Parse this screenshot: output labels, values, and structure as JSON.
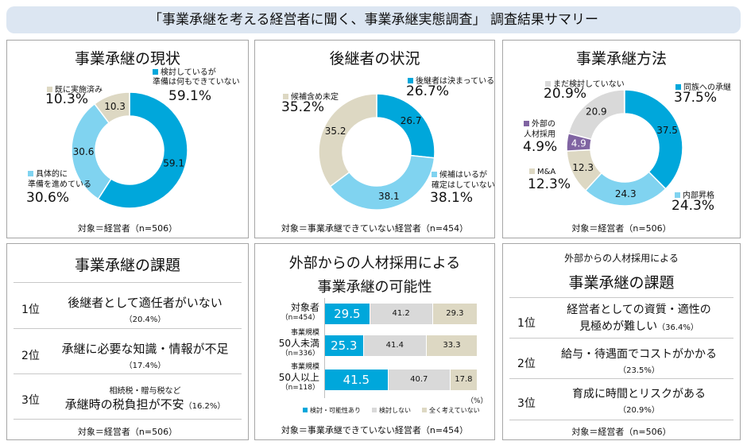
{
  "header": {
    "title": "「事業承継を考える経営者に聞く、事業承継実態調査」 調査結果サマリー"
  },
  "colors": {
    "dark_blue": "#00a7db",
    "light_blue": "#80d3f0",
    "beige": "#ddd8c3",
    "gray": "#d9d9d9",
    "purple": "#8064a2"
  },
  "chart_data": [
    {
      "type": "pie",
      "title": "事業承継の現状",
      "footer": "対象＝経営者（n=506）",
      "slices": [
        {
          "name_lines": [
            "検討しているが",
            "準備は何もできていない"
          ],
          "value": 59.1,
          "pct": "59.1%",
          "color": "#00a7db"
        },
        {
          "name_lines": [
            "具体的に",
            "準備を進めている"
          ],
          "value": 30.6,
          "pct": "30.6%",
          "color": "#80d3f0"
        },
        {
          "name_lines": [
            "既に実施済み"
          ],
          "value": 10.3,
          "pct": "10.3%",
          "color": "#ddd8c3"
        }
      ]
    },
    {
      "type": "pie",
      "title": "後継者の状況",
      "footer": "対象＝事業承継できていない経営者（n=454）",
      "slices": [
        {
          "name_lines": [
            "後継者は決まっている"
          ],
          "value": 26.7,
          "pct": "26.7%",
          "color": "#00a7db"
        },
        {
          "name_lines": [
            "候補はいるが",
            "確定はしていない"
          ],
          "value": 38.1,
          "pct": "38.1%",
          "color": "#80d3f0"
        },
        {
          "name_lines": [
            "候補含め未定"
          ],
          "value": 35.2,
          "pct": "35.2%",
          "color": "#ddd8c3"
        }
      ]
    },
    {
      "type": "pie",
      "title": "事業承継方法",
      "footer": "対象＝経営者（n=506）",
      "slices": [
        {
          "name_lines": [
            "同族への承継"
          ],
          "value": 37.5,
          "pct": "37.5%",
          "color": "#00a7db"
        },
        {
          "name_lines": [
            "内部昇格"
          ],
          "value": 24.3,
          "pct": "24.3%",
          "color": "#80d3f0"
        },
        {
          "name_lines": [
            "M&A"
          ],
          "value": 12.3,
          "pct": "12.3%",
          "color": "#ddd8c3"
        },
        {
          "name_lines": [
            "外部の",
            "人材採用"
          ],
          "value": 4.9,
          "pct": "4.9%",
          "color": "#8064a2"
        },
        {
          "name_lines": [
            "まだ検討していない"
          ],
          "value": 20.9,
          "pct": "20.9%",
          "color": "#d9d9d9"
        }
      ]
    },
    {
      "type": "bar",
      "orientation": "horizontal",
      "stacked": true,
      "title_lines": [
        "外部からの人材採用による",
        "事業承継の可能性"
      ],
      "unit": "（%）",
      "xlim": [
        0,
        100
      ],
      "footer": "対象＝事業承継できていない経営者（n=454）",
      "categories": [
        {
          "pre": "",
          "main": "対象者",
          "n": "（n=454）"
        },
        {
          "pre": "事業規模",
          "main": "50人未満",
          "n": "（n=336）"
        },
        {
          "pre": "事業規模",
          "main": "50人以上",
          "n": "（n=118）"
        }
      ],
      "series": [
        {
          "name": "検討・可能性あり",
          "values": [
            29.5,
            25.3,
            41.5
          ],
          "color": "#00a7db"
        },
        {
          "name": "検討しない",
          "values": [
            41.2,
            41.4,
            40.7
          ],
          "color": "#d9d9d9"
        },
        {
          "name": "全く考えていない",
          "values": [
            29.3,
            33.3,
            17.8
          ],
          "color": "#ddd8c3"
        }
      ]
    }
  ],
  "issues": {
    "title": "事業承継の課題",
    "footer": "対象＝経営者（n=506）",
    "items": [
      {
        "rank": "1位",
        "text": "後継者として適任者がいない",
        "pct": "（20.4%）"
      },
      {
        "rank": "2位",
        "text": "承継に必要な知識・情報が不足",
        "pct": "（17.4%）"
      },
      {
        "rank": "3位",
        "pre": "相続税・贈与税など",
        "text": "承継時の税負担が不安",
        "pct": "（16.2%）"
      }
    ]
  },
  "ext_issues": {
    "subtitle": "外部からの人材採用による",
    "title": "事業承継の課題",
    "footer": "対象＝経営者（n=506）",
    "items": [
      {
        "rank": "1位",
        "text": "経営者としての資質・適性の",
        "text2": "見極めが難しい",
        "pct": "（36.4%）"
      },
      {
        "rank": "2位",
        "text": "給与・待遇面でコストがかかる",
        "pct": "（23.5%）"
      },
      {
        "rank": "3位",
        "text": "育成に時間とリスクがある",
        "pct": "（20.9%）"
      }
    ]
  }
}
